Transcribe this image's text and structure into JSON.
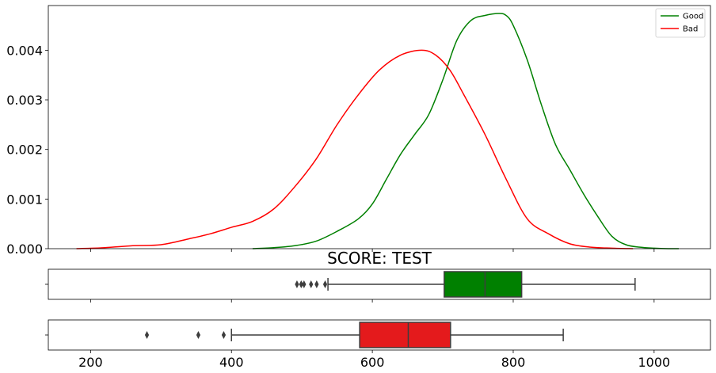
{
  "chart_data": [
    {
      "type": "line",
      "subtype": "kde-density",
      "title": "",
      "xlabel": "",
      "ylabel": "",
      "xlim": [
        140,
        1080
      ],
      "ylim": [
        0,
        0.0049
      ],
      "ytick_labels": [
        "0.000",
        "0.001",
        "0.002",
        "0.003",
        "0.004"
      ],
      "ytick_values": [
        0,
        0.001,
        0.002,
        0.003,
        0.004
      ],
      "grid": false,
      "legend_position": "top-right",
      "series": [
        {
          "name": "Good",
          "color": "#008000",
          "x": [
            430,
            460,
            490,
            520,
            550,
            580,
            600,
            620,
            640,
            660,
            680,
            700,
            720,
            740,
            760,
            780,
            790,
            800,
            820,
            840,
            860,
            880,
            900,
            920,
            940,
            960,
            980,
            1000,
            1020,
            1035
          ],
          "y": [
            0.0,
            2e-05,
            6e-05,
            0.00015,
            0.00035,
            0.0006,
            0.0009,
            0.0014,
            0.0019,
            0.0023,
            0.0027,
            0.0034,
            0.0042,
            0.0046,
            0.0047,
            0.00474,
            0.0047,
            0.0045,
            0.0038,
            0.0029,
            0.0021,
            0.0016,
            0.0011,
            0.00065,
            0.00025,
            8e-05,
            3e-05,
            1e-05,
            0.0,
            0.0
          ]
        },
        {
          "name": "Bad",
          "color": "#ff0000",
          "x": [
            180,
            220,
            260,
            300,
            340,
            370,
            400,
            430,
            460,
            490,
            520,
            550,
            580,
            610,
            640,
            670,
            690,
            710,
            730,
            760,
            790,
            820,
            850,
            880,
            910,
            940,
            970
          ],
          "y": [
            0.0,
            2e-05,
            6e-05,
            8e-05,
            0.0002,
            0.0003,
            0.00043,
            0.00055,
            0.0008,
            0.00125,
            0.0018,
            0.0025,
            0.0031,
            0.0036,
            0.0039,
            0.004,
            0.0039,
            0.0036,
            0.0031,
            0.0023,
            0.0014,
            0.0006,
            0.0003,
            0.0001,
            3e-05,
            1e-05,
            0.0
          ]
        }
      ]
    },
    {
      "type": "box",
      "title": "SCORE: TEST",
      "xlim": [
        140,
        1080
      ],
      "color": "#008000",
      "whisker_low": 537,
      "q1": 702,
      "median": 760,
      "q3": 812,
      "whisker_high": 973,
      "outliers": [
        493,
        499,
        503,
        513,
        521,
        533
      ]
    },
    {
      "type": "box",
      "title": "",
      "xlim": [
        140,
        1080
      ],
      "xtick_values": [
        200,
        400,
        600,
        800,
        1000
      ],
      "xtick_labels": [
        "200",
        "400",
        "600",
        "800",
        "1000"
      ],
      "color": "#e41a1c",
      "whisker_low": 400,
      "q1": 582,
      "median": 651,
      "q3": 711,
      "whisker_high": 871,
      "outliers": [
        280,
        353,
        389
      ]
    }
  ]
}
